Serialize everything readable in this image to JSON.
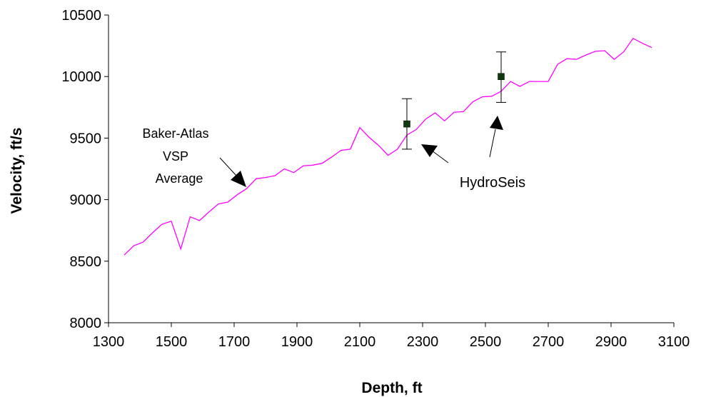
{
  "chart_data": {
    "type": "line",
    "xlabel": "Depth, ft",
    "ylabel": "Velocity, ft/s",
    "xlim": [
      1300,
      3100
    ],
    "ylim": [
      8000,
      10500
    ],
    "x_ticks": [
      "1300",
      "1500",
      "1700",
      "1900",
      "2100",
      "2300",
      "2500",
      "2700",
      "2900",
      "3100"
    ],
    "y_ticks": [
      "8000",
      "8500",
      "9000",
      "9500",
      "10000",
      "10500"
    ],
    "grid": false,
    "colors": {
      "vsp_line": "#ff00ff",
      "hydroseis_marker": "#0f3a0f",
      "error_bar": "#000000"
    },
    "series": [
      {
        "name": "Baker-Atlas VSP Average",
        "x": [
          1350,
          1380,
          1410,
          1440,
          1470,
          1500,
          1530,
          1560,
          1590,
          1620,
          1650,
          1680,
          1710,
          1740,
          1770,
          1800,
          1830,
          1860,
          1890,
          1920,
          1950,
          1980,
          2010,
          2040,
          2070,
          2100,
          2130,
          2160,
          2190,
          2220,
          2250,
          2280,
          2310,
          2340,
          2370,
          2400,
          2430,
          2460,
          2490,
          2520,
          2550,
          2580,
          2610,
          2640,
          2670,
          2700,
          2730,
          2760,
          2790,
          2820,
          2850,
          2880,
          2910,
          2940,
          2970,
          3000,
          3030
        ],
        "y": [
          8550,
          8625,
          8655,
          8730,
          8800,
          8825,
          8600,
          8860,
          8830,
          8900,
          8965,
          8980,
          9040,
          9090,
          9170,
          9180,
          9195,
          9250,
          9220,
          9275,
          9280,
          9295,
          9345,
          9400,
          9410,
          9585,
          9505,
          9440,
          9360,
          9410,
          9525,
          9570,
          9655,
          9705,
          9640,
          9710,
          9715,
          9795,
          9835,
          9840,
          9880,
          9960,
          9920,
          9960,
          9960,
          9960,
          10100,
          10145,
          10140,
          10175,
          10205,
          10210,
          10140,
          10200,
          10310,
          10270,
          10235
        ]
      },
      {
        "name": "HydroSeis",
        "x": [
          2250,
          2550
        ],
        "y": [
          9615,
          10000
        ],
        "error_low": [
          9410,
          9790
        ],
        "error_high": [
          9820,
          10200
        ]
      }
    ],
    "annotations": [
      {
        "lines": [
          "Baker-Atlas",
          "VSP",
          "Average"
        ]
      },
      {
        "text": "HydroSeis"
      }
    ]
  }
}
